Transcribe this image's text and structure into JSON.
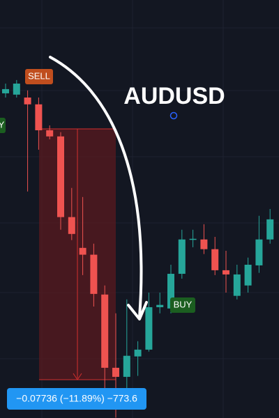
{
  "chart_data": {
    "type": "candlestick",
    "title": "AUDUSD",
    "categories": [
      null,
      null,
      null,
      null,
      null,
      null,
      null,
      null,
      null,
      null,
      null,
      null,
      null,
      null,
      null,
      null,
      null,
      null,
      null,
      null,
      null,
      null,
      null,
      null,
      null
    ],
    "open": [
      0.6616,
      0.6612,
      0.6603,
      0.6582,
      0.6502,
      0.6483,
      0.6234,
      0.6139,
      0.6118,
      0.5995,
      0.5769,
      0.5741,
      0.5804,
      0.5825,
      0.5956,
      0.5952,
      0.6059,
      0.6165,
      0.6165,
      0.6135,
      0.607,
      0.5991,
      0.6023,
      0.6085,
      0.6165
    ],
    "high": [
      0.6646,
      0.6657,
      0.6625,
      0.6603,
      0.6517,
      0.6496,
      0.6324,
      0.6296,
      0.6152,
      0.6023,
      0.5937,
      0.598,
      0.5851,
      0.6001,
      0.6001,
      0.6087,
      0.6195,
      0.6195,
      0.6212,
      0.6173,
      0.613,
      0.6087,
      0.6109,
      0.6238,
      0.6259
    ],
    "low": [
      0.6603,
      0.6603,
      0.6313,
      0.6442,
      0.6474,
      0.6195,
      0.6163,
      0.6055,
      0.5958,
      0.5701,
      0.5615,
      0.5701,
      0.5744,
      0.5819,
      0.5937,
      0.5937,
      0.6044,
      0.6141,
      0.612,
      0.6055,
      0.6001,
      0.598,
      0.6001,
      0.6062,
      0.6152
    ],
    "close": [
      0.6629,
      0.6646,
      0.6582,
      0.6502,
      0.6483,
      0.6234,
      0.6182,
      0.6118,
      0.5997,
      0.5769,
      0.5741,
      0.5806,
      0.5825,
      0.5956,
      0.5963,
      0.6059,
      0.6165,
      0.6167,
      0.6135,
      0.607,
      0.6057,
      0.6057,
      0.6087,
      0.6165,
      0.6227
    ],
    "up_color": "#26a69a",
    "down_color": "#ef5350",
    "ylim": [
      0.5614,
      0.6904
    ],
    "annotations": [
      "SELL",
      "BUY",
      "Y"
    ],
    "measurement": "−0.07736 (−11.89%) −773.6"
  }
}
